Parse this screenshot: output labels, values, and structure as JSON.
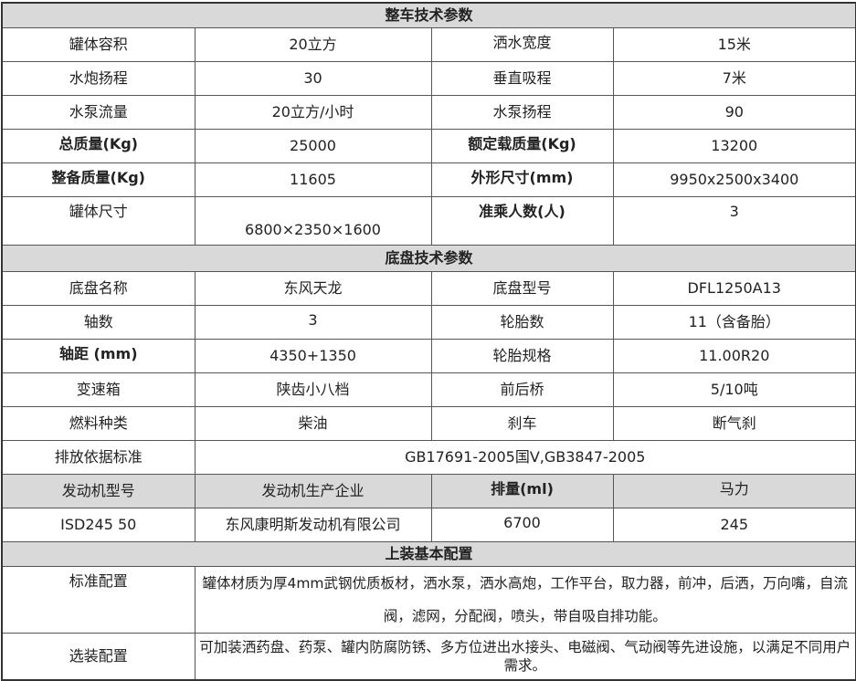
{
  "sections": {
    "vehicle": "整车技术参数",
    "chassis": "底盘技术参数",
    "body": "上装基本配置"
  },
  "vehicle_rows": [
    [
      "罐体容积",
      "20立方",
      "洒水宽度",
      "15米"
    ],
    [
      "水炮扬程",
      "30",
      "垂直吸程",
      "7米"
    ],
    [
      "水泵流量",
      "20立方/小时",
      "水泵扬程",
      "90"
    ],
    [
      "总质量(Kg)",
      "25000",
      "额定载质量(Kg)",
      "13200"
    ],
    [
      "整备质量(Kg)",
      "11605",
      "外形尺寸(mm)",
      "9950x2500x3400"
    ],
    [
      "罐体尺寸",
      "6800×2350×1600",
      "准乘人数(人)",
      "3"
    ]
  ],
  "chassis_rows": [
    [
      "底盘名称",
      "东风天龙",
      "底盘型号",
      "DFL1250A13"
    ],
    [
      "轴数",
      "3",
      "轮胎数",
      "11（含备胎）"
    ],
    [
      "轴距 (mm)",
      "4350+1350",
      "轮胎规格",
      "11.00R20"
    ],
    [
      "变速箱",
      "陕齿小八档",
      "前后桥",
      "5/10吨"
    ],
    [
      "燃料种类",
      "柴油",
      "刹车",
      "断气刹"
    ]
  ],
  "emission": {
    "label": "排放依据标准",
    "value": "GB17691-2005国Ⅴ,GB3847-2005"
  },
  "engine_header": [
    "发动机型号",
    "发动机生产企业",
    "排量(ml)",
    "马力"
  ],
  "engine_values": [
    "ISD245 50",
    "东风康明斯发动机有限公司",
    "6700",
    "245"
  ],
  "standard": {
    "label": "标准配置",
    "value": "罐体材质为厚4mm武钢优质板材，洒水泵，洒水高炮，工作平台，取力器，前冲，后洒，万向嘴，自流阀，滤网，分配阀，喷头，带自吸自排功能。"
  },
  "optional": {
    "label": "选装配置",
    "value": "可加装洒药盘、药泵、罐内防腐防锈、多方位进出水接头、电磁阀、气动阀等先进设施，以满足不同用户需求。"
  }
}
